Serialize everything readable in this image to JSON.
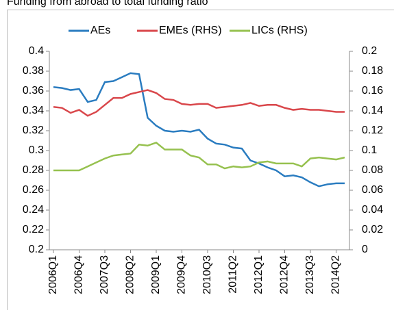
{
  "chart_data": {
    "type": "line",
    "title": "Funding from abroad to total funding ratio",
    "categories": [
      "2006Q1",
      null,
      null,
      "2006Q4",
      null,
      null,
      "2007Q3",
      null,
      null,
      "2008Q2",
      null,
      null,
      "2009Q1",
      null,
      null,
      "2009Q4",
      null,
      null,
      "2010Q3",
      null,
      null,
      "2011Q2",
      null,
      null,
      "2012Q1",
      null,
      null,
      "2012Q4",
      null,
      null,
      "2013Q3",
      null,
      null,
      "2014Q2",
      null
    ],
    "series": [
      {
        "name": "AEs",
        "color": "#2a7cc0",
        "values": [
          0.364,
          0.363,
          0.361,
          0.362,
          0.349,
          0.351,
          0.369,
          0.37,
          0.374,
          0.378,
          0.377,
          0.333,
          0.325,
          0.32,
          0.319,
          0.32,
          0.319,
          0.321,
          0.312,
          0.307,
          0.306,
          0.303,
          0.302,
          0.29,
          0.287,
          0.283,
          0.28,
          0.274,
          0.275,
          0.273,
          0.268,
          0.264,
          0.266,
          0.267,
          0.267
        ]
      },
      {
        "name": "EMEs (RHS)",
        "color": "#d9474b",
        "axis": "y2",
        "values": [
          0.144,
          0.143,
          0.138,
          0.141,
          0.135,
          0.139,
          0.146,
          0.153,
          0.153,
          0.157,
          0.159,
          0.161,
          0.158,
          0.152,
          0.151,
          0.147,
          0.146,
          0.147,
          0.147,
          0.143,
          0.144,
          0.145,
          0.146,
          0.148,
          0.145,
          0.146,
          0.146,
          0.143,
          0.141,
          0.142,
          0.141,
          0.141,
          0.14,
          0.139,
          0.139
        ]
      },
      {
        "name": "LICs (RHS)",
        "color": "#96c14f",
        "axis": "y2",
        "values": [
          0.08,
          0.08,
          0.08,
          0.08,
          0.084,
          0.088,
          0.092,
          0.095,
          0.096,
          0.097,
          0.106,
          0.105,
          0.108,
          0.101,
          0.101,
          0.101,
          0.095,
          0.093,
          0.086,
          0.086,
          0.082,
          0.084,
          0.083,
          0.084,
          0.088,
          0.089,
          0.087,
          0.087,
          0.087,
          0.084,
          0.092,
          0.093,
          0.092,
          0.091,
          0.093
        ]
      }
    ],
    "ylim": [
      0.2,
      0.4
    ],
    "yticks": [
      0.2,
      0.22,
      0.24,
      0.26,
      0.28,
      0.3,
      0.32,
      0.34,
      0.36,
      0.38,
      0.4
    ],
    "y2lim": [
      0,
      0.2
    ],
    "y2ticks": [
      0,
      0.02,
      0.04,
      0.06,
      0.08,
      0.1,
      0.12,
      0.14,
      0.16,
      0.18,
      0.2
    ],
    "legend": "top"
  }
}
